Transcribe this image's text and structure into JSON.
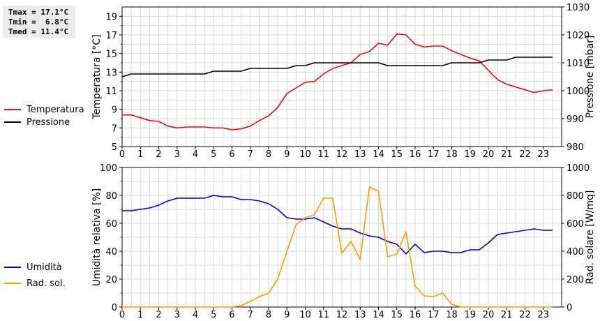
{
  "stats": {
    "tmax": "Tmax = 17.1°C",
    "tmin": "Tmin =  6.8°C",
    "tmed": "Tmed = 11.4°C"
  },
  "colors": {
    "temperature": "#e01010",
    "pressure": "#000000",
    "humidity": "#0000c0",
    "solar": "#f0a000",
    "grid": "#d8d8d8"
  },
  "chart_data": [
    {
      "type": "line",
      "ylabel": "Temperatura [°C]",
      "y2label": "Pressione [mbar]",
      "xlim": [
        0,
        24
      ],
      "ylim": [
        5,
        20
      ],
      "y2lim": [
        980,
        1030
      ],
      "x_ticks": [
        "0",
        "1",
        "2",
        "3",
        "4",
        "5",
        "6",
        "7",
        "8",
        "9",
        "10",
        "11",
        "12",
        "13",
        "14",
        "15",
        "16",
        "17",
        "18",
        "19",
        "20",
        "21",
        "22",
        "23"
      ],
      "y_ticks": [
        "5",
        "7",
        "9",
        "11",
        "13",
        "15",
        "17",
        "19"
      ],
      "y2_ticks": [
        "980",
        "990",
        "1000",
        "1010",
        "1020",
        "1030"
      ],
      "grid": true,
      "legend_position": "left",
      "series": [
        {
          "name": "Temperatura",
          "axis": "left",
          "x": [
            0,
            0.5,
            1,
            1.5,
            2,
            2.5,
            3,
            3.5,
            4,
            4.5,
            5,
            5.5,
            6,
            6.5,
            7,
            7.5,
            8,
            8.5,
            9,
            9.5,
            10,
            10.5,
            11,
            11.5,
            12,
            12.5,
            13,
            13.5,
            14,
            14.5,
            15,
            15.5,
            16,
            16.5,
            17,
            17.5,
            18,
            18.5,
            19,
            19.5,
            20,
            20.5,
            21,
            21.5,
            22,
            22.5,
            23,
            23.5
          ],
          "values": [
            8.4,
            8.4,
            8.1,
            7.8,
            7.7,
            7.2,
            7.0,
            7.1,
            7.1,
            7.1,
            7.0,
            7.0,
            6.8,
            6.9,
            7.2,
            7.8,
            8.3,
            9.2,
            10.7,
            11.3,
            11.9,
            12.0,
            12.8,
            13.4,
            13.7,
            14.0,
            14.9,
            15.2,
            16.1,
            15.9,
            17.1,
            17.0,
            16.0,
            15.7,
            15.8,
            15.8,
            15.3,
            14.9,
            14.5,
            14.2,
            13.2,
            12.2,
            11.7,
            11.4,
            11.1,
            10.8,
            11.0,
            11.1
          ]
        },
        {
          "name": "Pressione",
          "axis": "right",
          "x": [
            0,
            0.5,
            1,
            1.5,
            2,
            2.5,
            3,
            3.5,
            4,
            4.5,
            5,
            5.5,
            6,
            6.5,
            7,
            7.5,
            8,
            8.5,
            9,
            9.5,
            10,
            10.5,
            11,
            11.5,
            12,
            12.5,
            13,
            13.5,
            14,
            14.5,
            15,
            15.5,
            16,
            16.5,
            17,
            17.5,
            18,
            18.5,
            19,
            19.5,
            20,
            20.5,
            21,
            21.5,
            22,
            22.5,
            23,
            23.5
          ],
          "values": [
            1005,
            1006,
            1006,
            1006,
            1006,
            1006,
            1006,
            1006,
            1006,
            1006,
            1007,
            1007,
            1007,
            1007,
            1008,
            1008,
            1008,
            1008,
            1008,
            1009,
            1009,
            1010,
            1010,
            1010,
            1010,
            1010,
            1010,
            1010,
            1010,
            1009,
            1009,
            1009,
            1009,
            1009,
            1009,
            1009,
            1010,
            1010,
            1010,
            1010,
            1011,
            1011,
            1011,
            1012,
            1012,
            1012,
            1012,
            1012
          ]
        }
      ]
    },
    {
      "type": "line",
      "ylabel": "Umidità relativa [%]",
      "y2label": "Rad. solare [W/mq]",
      "xlim": [
        0,
        24
      ],
      "ylim": [
        0,
        100
      ],
      "y2lim": [
        0,
        1000
      ],
      "x_ticks": [
        "0",
        "1",
        "2",
        "3",
        "4",
        "5",
        "6",
        "7",
        "8",
        "9",
        "10",
        "11",
        "12",
        "13",
        "14",
        "15",
        "16",
        "17",
        "18",
        "19",
        "20",
        "21",
        "22",
        "23"
      ],
      "y_ticks": [
        "0",
        "20",
        "40",
        "60",
        "80",
        "100"
      ],
      "y2_ticks": [
        "0",
        "200",
        "400",
        "600",
        "800",
        "1000"
      ],
      "grid": true,
      "legend_position": "left",
      "series": [
        {
          "name": "Umidità",
          "axis": "left",
          "x": [
            0,
            0.5,
            1,
            1.5,
            2,
            2.5,
            3,
            3.5,
            4,
            4.5,
            5,
            5.5,
            6,
            6.5,
            7,
            7.5,
            8,
            8.5,
            9,
            9.5,
            10,
            10.5,
            11,
            11.5,
            12,
            12.5,
            13,
            13.5,
            14,
            14.5,
            15,
            15.5,
            16,
            16.5,
            17,
            17.5,
            18,
            18.5,
            19,
            19.5,
            20,
            20.5,
            21,
            21.5,
            22,
            22.5,
            23,
            23.5
          ],
          "values": [
            69,
            69,
            70,
            71,
            73,
            76,
            78,
            78,
            78,
            78,
            80,
            79,
            79,
            77,
            77,
            76,
            74,
            70,
            64,
            63,
            63,
            64,
            61,
            58,
            56,
            56,
            53,
            51,
            50,
            47,
            45,
            38,
            45,
            39,
            40,
            40,
            39,
            39,
            41,
            41,
            46,
            52,
            53,
            54,
            55,
            56,
            55,
            55
          ]
        },
        {
          "name": "Rad. sol.",
          "axis": "right",
          "x": [
            0,
            0.5,
            1,
            1.5,
            2,
            2.5,
            3,
            3.5,
            4,
            4.5,
            5,
            5.5,
            6,
            6.5,
            7,
            7.5,
            8,
            8.5,
            9,
            9.5,
            10,
            10.5,
            11,
            11.5,
            12,
            12.5,
            13,
            13.5,
            14,
            14.5,
            15,
            15.5,
            16,
            16.5,
            17,
            17.5,
            18,
            18.5,
            19,
            19.5,
            20,
            20.5,
            21,
            21.5,
            22,
            22.5,
            23,
            23.5
          ],
          "values": [
            0,
            0,
            0,
            0,
            0,
            0,
            0,
            0,
            0,
            0,
            0,
            0,
            0,
            10,
            40,
            75,
            100,
            200,
            400,
            590,
            640,
            660,
            780,
            780,
            385,
            470,
            340,
            860,
            830,
            360,
            380,
            540,
            150,
            80,
            75,
            100,
            20,
            0,
            0,
            0,
            0,
            0,
            0,
            0,
            0,
            0,
            0,
            0
          ]
        }
      ]
    }
  ]
}
